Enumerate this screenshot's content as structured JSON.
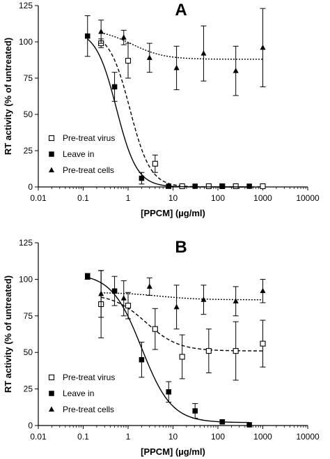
{
  "chart_data": [
    {
      "type": "scatter",
      "panel_label": "A",
      "xlabel": "[PPCM] (µg/ml)",
      "ylabel": "RT activity (% of untreated)",
      "x_scale": "log",
      "xlim": [
        0.01,
        10000
      ],
      "ylim": [
        0,
        125
      ],
      "x_ticks": [
        "0.01",
        "0.1",
        "1",
        "10",
        "100",
        "1000",
        "10000"
      ],
      "y_ticks": [
        "0",
        "25",
        "50",
        "75",
        "100",
        "125"
      ],
      "grid": false,
      "legend_position": "bottom-left",
      "series": [
        {
          "name": "Pre-treat virus",
          "marker": "open-square",
          "line": "dashed",
          "points": [
            {
              "x": 0.25,
              "y": 99,
              "err": 3
            },
            {
              "x": 1,
              "y": 87,
              "err": 12
            },
            {
              "x": 4,
              "y": 16,
              "err": 6
            },
            {
              "x": 16,
              "y": 0.5,
              "err": 0
            },
            {
              "x": 62.5,
              "y": 0.5,
              "err": 0
            },
            {
              "x": 125,
              "y": 0.5,
              "err": 0
            },
            {
              "x": 250,
              "y": 0.5,
              "err": 0
            },
            {
              "x": 1000,
              "y": 0.5,
              "err": 0
            }
          ],
          "fit": {
            "top": 107,
            "bottom": 0,
            "ec50": 1.1,
            "hill": 1.9
          }
        },
        {
          "name": "Leave in",
          "marker": "filled-square",
          "line": "solid",
          "points": [
            {
              "x": 0.125,
              "y": 104,
              "err": 14
            },
            {
              "x": 0.5,
              "y": 69,
              "err": 10
            },
            {
              "x": 2,
              "y": 6,
              "err": 4
            },
            {
              "x": 8,
              "y": 0.5,
              "err": 0
            },
            {
              "x": 31,
              "y": 0.5,
              "err": 0
            },
            {
              "x": 125,
              "y": 0.5,
              "err": 0
            },
            {
              "x": 500,
              "y": 0.5,
              "err": 0
            }
          ],
          "fit": {
            "top": 108,
            "bottom": 0,
            "ec50": 0.55,
            "hill": 1.9
          }
        },
        {
          "name": "Pre-treat cells",
          "marker": "filled-triangle",
          "line": "dotted",
          "points": [
            {
              "x": 0.25,
              "y": 107,
              "err": 8
            },
            {
              "x": 0.8,
              "y": 103,
              "err": 5
            },
            {
              "x": 3,
              "y": 89,
              "err": 10
            },
            {
              "x": 12,
              "y": 82,
              "err": 15
            },
            {
              "x": 48,
              "y": 92,
              "err": 19
            },
            {
              "x": 250,
              "y": 80,
              "err": 17
            },
            {
              "x": 1000,
              "y": 96,
              "err": 27
            }
          ],
          "fit": {
            "top": 109,
            "bottom": 88,
            "ec50": 1.2,
            "hill": 1.2
          }
        }
      ]
    },
    {
      "type": "scatter",
      "panel_label": "B",
      "xlabel": "[PPCM] (µg/ml)",
      "ylabel": "RT activity (% of untreated)",
      "x_scale": "log",
      "xlim": [
        0.01,
        10000
      ],
      "ylim": [
        0,
        125
      ],
      "x_ticks": [
        "0.01",
        "0.1",
        "1",
        "10",
        "100",
        "1000",
        "10000"
      ],
      "y_ticks": [
        "0",
        "25",
        "50",
        "75",
        "100",
        "125"
      ],
      "grid": false,
      "legend_position": "bottom-left",
      "series": [
        {
          "name": "Pre-treat virus",
          "marker": "open-square",
          "line": "dashed",
          "points": [
            {
              "x": 0.25,
              "y": 83,
              "err": 23
            },
            {
              "x": 1,
              "y": 82,
              "err": 9
            },
            {
              "x": 4,
              "y": 66,
              "err": 14
            },
            {
              "x": 16,
              "y": 47,
              "err": 15
            },
            {
              "x": 62.5,
              "y": 51,
              "err": 15
            },
            {
              "x": 250,
              "y": 51,
              "err": 20
            },
            {
              "x": 1000,
              "y": 56,
              "err": 16
            }
          ],
          "fit": {
            "top": 90,
            "bottom": 51,
            "ec50": 2.5,
            "hill": 1.2
          }
        },
        {
          "name": "Leave in",
          "marker": "filled-square",
          "line": "solid",
          "points": [
            {
              "x": 0.125,
              "y": 102,
              "err": 2
            },
            {
              "x": 0.5,
              "y": 92,
              "err": 10
            },
            {
              "x": 2,
              "y": 45,
              "err": 12
            },
            {
              "x": 8,
              "y": 23,
              "err": 7
            },
            {
              "x": 31,
              "y": 10,
              "err": 5
            },
            {
              "x": 125,
              "y": 2.5,
              "err": 1
            },
            {
              "x": 500,
              "y": 0.5,
              "err": 0
            }
          ],
          "fit": {
            "top": 104,
            "bottom": 2,
            "ec50": 2.0,
            "hill": 1.3
          }
        },
        {
          "name": "Pre-treat cells",
          "marker": "filled-triangle",
          "line": "dotted",
          "points": [
            {
              "x": 0.25,
              "y": 90,
              "err": 16
            },
            {
              "x": 0.8,
              "y": 87,
              "err": 12
            },
            {
              "x": 3,
              "y": 95,
              "err": 6
            },
            {
              "x": 12,
              "y": 81,
              "err": 15
            },
            {
              "x": 48,
              "y": 86,
              "err": 10
            },
            {
              "x": 250,
              "y": 85,
              "err": 10
            },
            {
              "x": 1000,
              "y": 92,
              "err": 8
            }
          ],
          "fit": {
            "top": 91,
            "bottom": 86,
            "ec50": 5,
            "hill": 1.0
          }
        }
      ]
    }
  ]
}
